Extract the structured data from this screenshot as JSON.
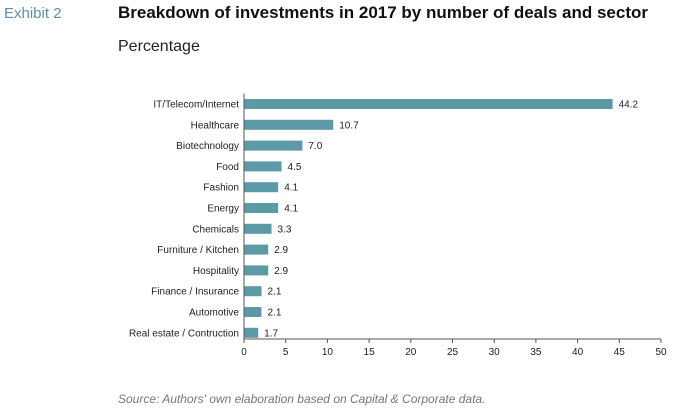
{
  "exhibit": "Exhibit 2",
  "title": "Breakdown of investments in 2017 by number of deals and sector",
  "subtitle": "Percentage",
  "source": "Source: Authors' own elaboration based on Capital & Corporate data.",
  "chart_data": {
    "type": "bar",
    "orientation": "horizontal",
    "categories": [
      "IT/Telecom/Internet",
      "Healthcare",
      "Biotechnology",
      "Food",
      "Fashion",
      "Energy",
      "Chemicals",
      "Furniture / Kitchen",
      "Hospitality",
      "Finance / Insurance",
      "Automotive",
      "Real estate / Contruction"
    ],
    "values": [
      44.2,
      10.7,
      7.0,
      4.5,
      4.1,
      4.1,
      3.3,
      2.9,
      2.9,
      2.1,
      2.1,
      1.7
    ],
    "value_labels": [
      "44.2",
      "10.7",
      "7.0",
      "4.5",
      "4.1",
      "4.1",
      "3.3",
      "2.9",
      "2.9",
      "2.1",
      "2.1",
      "1.7"
    ],
    "x_ticks": [
      "0",
      "5",
      "10",
      "15",
      "20",
      "25",
      "30",
      "35",
      "40",
      "45",
      "50"
    ],
    "xlim": [
      0,
      50
    ],
    "grid": false,
    "bar_color": "#5b9aa6"
  }
}
